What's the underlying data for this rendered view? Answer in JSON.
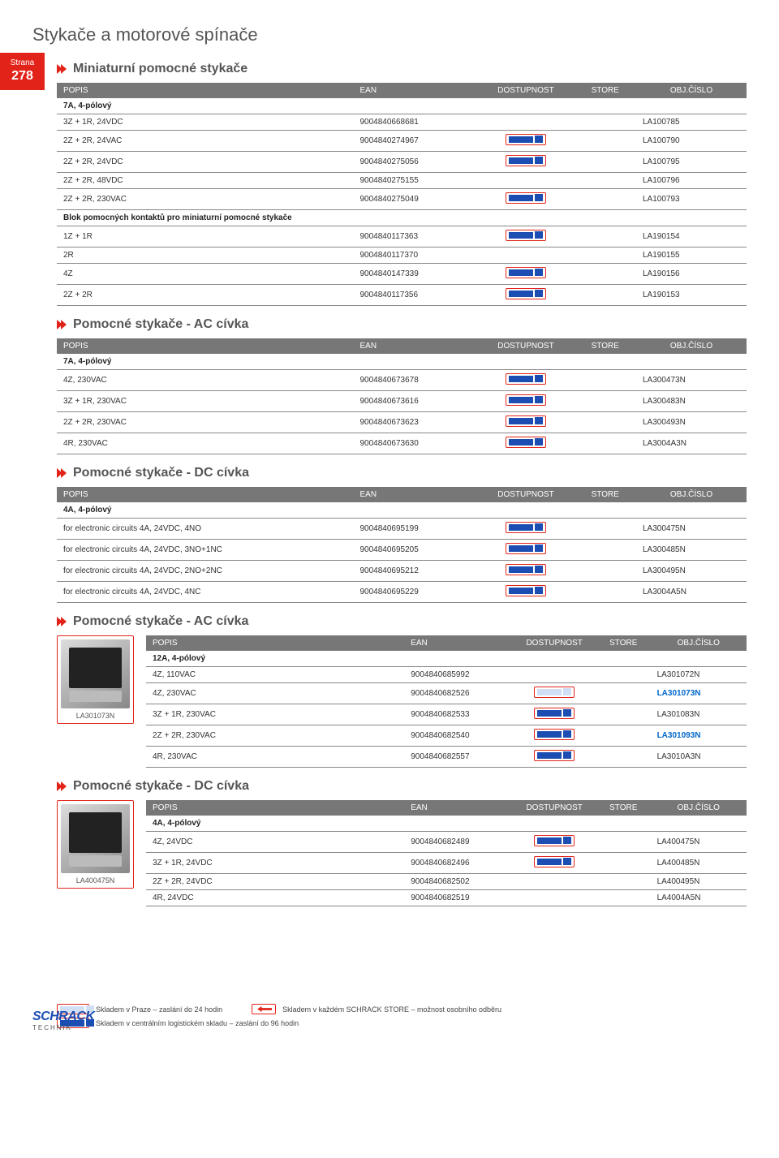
{
  "page": {
    "title": "Stykače a motorové spínače",
    "tab_label": "Strana",
    "tab_number": "278"
  },
  "columns": {
    "popis": "POPIS",
    "ean": "EAN",
    "dostupnost": "DOSTUPNOST",
    "store": "STORE",
    "obj": "OBJ.ČÍSLO"
  },
  "sections": [
    {
      "title": "Miniaturní pomocné stykače",
      "has_image": false,
      "groups": [
        {
          "subheader": "7A, 4-pólový",
          "rows": [
            {
              "popis": "3Z + 1R, 24VDC",
              "ean": "9004840668681",
              "truck": "none",
              "obj": "LA100785",
              "hl": false
            },
            {
              "popis": "2Z + 2R, 24VAC",
              "ean": "9004840274967",
              "truck": "dark",
              "obj": "LA100790",
              "hl": false
            },
            {
              "popis": "2Z + 2R, 24VDC",
              "ean": "9004840275056",
              "truck": "dark",
              "obj": "LA100795",
              "hl": false
            },
            {
              "popis": "2Z + 2R, 48VDC",
              "ean": "9004840275155",
              "truck": "none",
              "obj": "LA100796",
              "hl": false
            },
            {
              "popis": "2Z + 2R, 230VAC",
              "ean": "9004840275049",
              "truck": "dark",
              "obj": "LA100793",
              "hl": false
            }
          ]
        },
        {
          "subheader": "Blok pomocných kontaktů pro miniaturní pomocné stykače",
          "rows": [
            {
              "popis": "1Z + 1R",
              "ean": "9004840117363",
              "truck": "dark",
              "obj": "LA190154",
              "hl": false
            },
            {
              "popis": "2R",
              "ean": "9004840117370",
              "truck": "none",
              "obj": "LA190155",
              "hl": false
            },
            {
              "popis": "4Z",
              "ean": "9004840147339",
              "truck": "dark",
              "obj": "LA190156",
              "hl": false
            },
            {
              "popis": "2Z + 2R",
              "ean": "9004840117356",
              "truck": "dark",
              "obj": "LA190153",
              "hl": false
            }
          ]
        }
      ]
    },
    {
      "title": "Pomocné stykače - AC cívka",
      "has_image": false,
      "groups": [
        {
          "subheader": "7A, 4-pólový",
          "rows": [
            {
              "popis": "4Z, 230VAC",
              "ean": "9004840673678",
              "truck": "dark",
              "obj": "LA300473N",
              "hl": false
            },
            {
              "popis": "3Z + 1R, 230VAC",
              "ean": "9004840673616",
              "truck": "dark",
              "obj": "LA300483N",
              "hl": false
            },
            {
              "popis": "2Z + 2R, 230VAC",
              "ean": "9004840673623",
              "truck": "dark",
              "obj": "LA300493N",
              "hl": false
            },
            {
              "popis": "4R, 230VAC",
              "ean": "9004840673630",
              "truck": "dark",
              "obj": "LA3004A3N",
              "hl": false
            }
          ]
        }
      ]
    },
    {
      "title": "Pomocné stykače - DC cívka",
      "has_image": false,
      "groups": [
        {
          "subheader": "4A, 4-pólový",
          "rows": [
            {
              "popis": "for electronic circuits 4A, 24VDC, 4NO",
              "ean": "9004840695199",
              "truck": "dark",
              "obj": "LA300475N",
              "hl": false
            },
            {
              "popis": "for electronic circuits 4A, 24VDC, 3NO+1NC",
              "ean": "9004840695205",
              "truck": "dark",
              "obj": "LA300485N",
              "hl": false
            },
            {
              "popis": "for electronic circuits 4A, 24VDC, 2NO+2NC",
              "ean": "9004840695212",
              "truck": "dark",
              "obj": "LA300495N",
              "hl": false
            },
            {
              "popis": "for electronic circuits 4A, 24VDC, 4NC",
              "ean": "9004840695229",
              "truck": "dark",
              "obj": "LA3004A5N",
              "hl": false
            }
          ]
        }
      ]
    },
    {
      "title": "Pomocné stykače - AC cívka",
      "has_image": true,
      "image_caption": "LA301073N",
      "groups": [
        {
          "subheader": "12A, 4-pólový",
          "rows": [
            {
              "popis": "4Z, 110VAC",
              "ean": "9004840685992",
              "truck": "none",
              "obj": "LA301072N",
              "hl": false
            },
            {
              "popis": "4Z, 230VAC",
              "ean": "9004840682526",
              "truck": "light",
              "obj": "LA301073N",
              "hl": true
            },
            {
              "popis": "3Z + 1R, 230VAC",
              "ean": "9004840682533",
              "truck": "dark",
              "obj": "LA301083N",
              "hl": false
            },
            {
              "popis": "2Z + 2R, 230VAC",
              "ean": "9004840682540",
              "truck": "dark",
              "obj": "LA301093N",
              "hl": true
            },
            {
              "popis": "4R, 230VAC",
              "ean": "9004840682557",
              "truck": "dark",
              "obj": "LA3010A3N",
              "hl": false
            }
          ]
        }
      ]
    },
    {
      "title": "Pomocné stykače - DC cívka",
      "has_image": true,
      "image_caption": "LA400475N",
      "groups": [
        {
          "subheader": "4A, 4-pólový",
          "rows": [
            {
              "popis": "4Z, 24VDC",
              "ean": "9004840682489",
              "truck": "dark",
              "obj": "LA400475N",
              "hl": false
            },
            {
              "popis": "3Z + 1R, 24VDC",
              "ean": "9004840682496",
              "truck": "dark",
              "obj": "LA400485N",
              "hl": false
            },
            {
              "popis": "2Z + 2R, 24VDC",
              "ean": "9004840682502",
              "truck": "none",
              "obj": "LA400495N",
              "hl": false
            },
            {
              "popis": "4R, 24VDC",
              "ean": "9004840682519",
              "truck": "none",
              "obj": "LA4004A5N",
              "hl": false
            }
          ]
        }
      ]
    }
  ],
  "footer": {
    "line1": "Skladem v Praze – zaslání do 24 hodin",
    "line1b": "Skladem v každém SCHRACK STORE – možnost osobního odběru",
    "line2": "Skladem v centrálním logistickém skladu – zaslání do 96 hodin",
    "logo": "SCHRACK",
    "logo_sub": "TECHNIK"
  },
  "colors": {
    "brand_red": "#e2231a",
    "brand_blue": "#1b4db3",
    "header_gray": "#777777",
    "link_blue": "#0066cc"
  }
}
